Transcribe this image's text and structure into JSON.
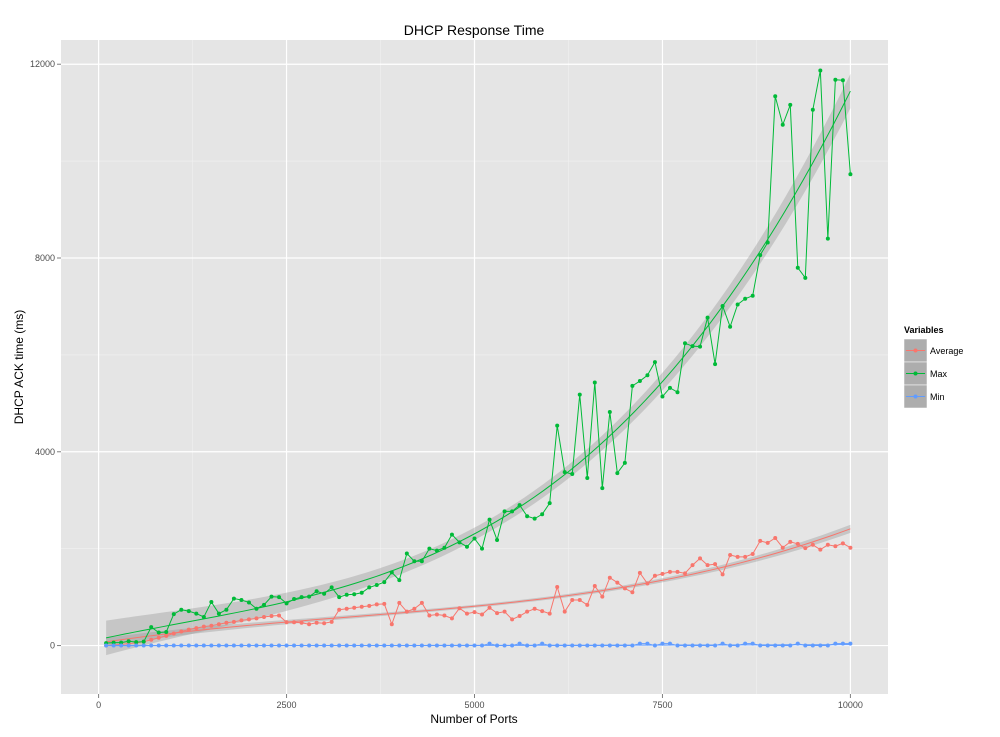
{
  "chart_data": {
    "type": "line",
    "title": "DHCP Response Time",
    "xlabel": "Number of Ports",
    "ylabel": "DHCP ACK time (ms)",
    "xlim": [
      -500,
      10500
    ],
    "ylim": [
      -1000,
      12500
    ],
    "xticks": [
      0,
      2500,
      5000,
      7500,
      10000
    ],
    "yticks": [
      0,
      4000,
      8000,
      12000
    ],
    "x_tick_labels": [
      "0",
      "2500",
      "5000",
      "7500",
      "10000"
    ],
    "y_tick_labels": [
      "0",
      "4000",
      "8000",
      "12000"
    ],
    "grid": true,
    "legend": {
      "title": "Variables",
      "placement": "right",
      "entries": [
        "Average",
        "Max",
        "Min"
      ]
    },
    "smooth_trend": true,
    "colors": {
      "Average": "#F8766D",
      "Max": "#00BA38",
      "Min": "#619CFF",
      "panel": "#E5E5E5",
      "ribbon": "#999999"
    },
    "x": [
      100,
      200,
      300,
      400,
      500,
      600,
      700,
      800,
      900,
      1000,
      1100,
      1200,
      1300,
      1400,
      1500,
      1600,
      1700,
      1800,
      1900,
      2000,
      2100,
      2200,
      2300,
      2400,
      2500,
      2600,
      2700,
      2800,
      2900,
      3000,
      3100,
      3200,
      3300,
      3400,
      3500,
      3600,
      3700,
      3800,
      3900,
      4000,
      4100,
      4200,
      4300,
      4400,
      4500,
      4600,
      4700,
      4800,
      4900,
      5000,
      5100,
      5200,
      5300,
      5400,
      5500,
      5600,
      5700,
      5800,
      5900,
      6000,
      6100,
      6200,
      6300,
      6400,
      6500,
      6600,
      6700,
      6800,
      6900,
      7000,
      7100,
      7200,
      7300,
      7400,
      7500,
      7600,
      7700,
      7800,
      7900,
      8000,
      8100,
      8200,
      8300,
      8400,
      8500,
      8600,
      8700,
      8800,
      8900,
      9000,
      9100,
      9200,
      9300,
      9400,
      9500,
      9600,
      9700,
      9800,
      9900,
      10000
    ],
    "series": [
      {
        "name": "Average",
        "values": [
          0,
          10,
          25,
          40,
          55,
          80,
          120,
          160,
          200,
          250,
          290,
          330,
          360,
          390,
          410,
          440,
          470,
          490,
          520,
          540,
          560,
          590,
          610,
          620,
          480,
          480,
          470,
          440,
          470,
          460,
          490,
          740,
          760,
          780,
          800,
          820,
          850,
          860,
          440,
          880,
          700,
          760,
          880,
          620,
          640,
          620,
          560,
          770,
          660,
          690,
          640,
          780,
          670,
          700,
          540,
          610,
          700,
          760,
          710,
          660,
          1210,
          700,
          940,
          940,
          840,
          1230,
          1010,
          1400,
          1300,
          1180,
          1100,
          1500,
          1280,
          1440,
          1480,
          1520,
          1520,
          1490,
          1660,
          1800,
          1660,
          1680,
          1470,
          1870,
          1830,
          1830,
          1890,
          2160,
          2120,
          2220,
          2020,
          2140,
          2100,
          2010,
          2080,
          1980,
          2080,
          2050,
          2110,
          2020
        ]
      },
      {
        "name": "Max",
        "values": [
          50,
          60,
          60,
          90,
          70,
          80,
          380,
          270,
          280,
          650,
          740,
          710,
          660,
          590,
          900,
          660,
          740,
          970,
          940,
          890,
          760,
          840,
          1010,
          1000,
          870,
          960,
          1000,
          1010,
          1120,
          1070,
          1200,
          1000,
          1050,
          1060,
          1090,
          1200,
          1250,
          1310,
          1510,
          1350,
          1900,
          1740,
          1740,
          2000,
          1960,
          2020,
          2290,
          2130,
          2040,
          2210,
          2000,
          2600,
          2180,
          2770,
          2770,
          2900,
          2670,
          2620,
          2710,
          2940,
          4540,
          3580,
          3540,
          5180,
          3460,
          5430,
          3250,
          4820,
          3560,
          3770,
          5360,
          5460,
          5580,
          5850,
          5140,
          5320,
          5230,
          6240,
          6180,
          6170,
          6770,
          5810,
          7010,
          6580,
          7040,
          7160,
          7220,
          8060,
          8320,
          11340,
          10750,
          11160,
          7800,
          7590,
          11060,
          11870,
          8400,
          11680,
          11670,
          9730
        ]
      },
      {
        "name": "Min",
        "values": [
          0,
          0,
          0,
          0,
          0,
          0,
          0,
          0,
          0,
          0,
          0,
          0,
          0,
          0,
          0,
          0,
          0,
          0,
          0,
          0,
          0,
          0,
          0,
          0,
          0,
          0,
          0,
          0,
          0,
          0,
          0,
          0,
          0,
          0,
          0,
          0,
          0,
          0,
          0,
          0,
          0,
          0,
          0,
          0,
          0,
          0,
          0,
          0,
          0,
          0,
          0,
          40,
          0,
          0,
          0,
          40,
          0,
          0,
          40,
          0,
          0,
          0,
          0,
          0,
          0,
          0,
          0,
          0,
          0,
          0,
          0,
          40,
          40,
          0,
          40,
          40,
          0,
          0,
          0,
          0,
          0,
          0,
          40,
          0,
          0,
          40,
          40,
          0,
          0,
          0,
          0,
          0,
          40,
          0,
          0,
          0,
          0,
          40,
          40,
          40
        ]
      }
    ]
  }
}
